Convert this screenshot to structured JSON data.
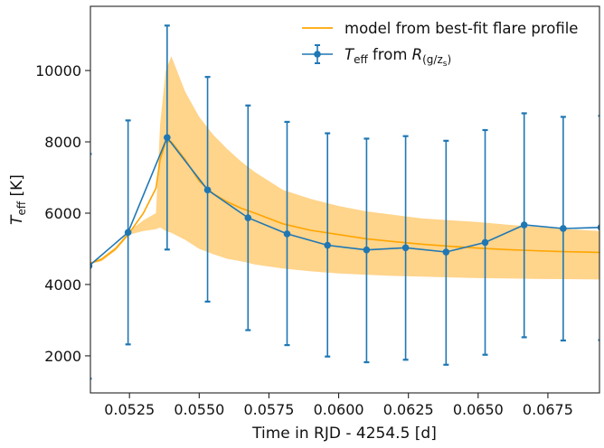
{
  "chart_data": {
    "type": "line",
    "xlabel": "Time in RJD - 4254.5  [d]",
    "ylabel": "T_eff [K]",
    "xlim": [
      0.0511,
      0.06935
    ],
    "ylim": [
      960,
      11800
    ],
    "x_ticks": [
      "0.0525",
      "0.0550",
      "0.0575",
      "0.0600",
      "0.0625",
      "0.0650",
      "0.0675"
    ],
    "x_tick_values": [
      0.0525,
      0.055,
      0.0575,
      0.06,
      0.0625,
      0.065,
      0.0675
    ],
    "y_ticks": [
      "2000",
      "4000",
      "6000",
      "8000",
      "10000"
    ],
    "y_tick_values": [
      2000,
      4000,
      6000,
      8000,
      10000
    ],
    "colors": {
      "model": "#ffa500",
      "band": "#ffcc77",
      "measured": "#1f77b4"
    },
    "legend": {
      "placement": "top-right",
      "model_label": "model from best-fit flare profile",
      "measured_label_prefix": "T_eff from R",
      "measured_label_subscript": "(g/z_s)"
    },
    "measured": {
      "x": [
        0.05105,
        0.05245,
        0.05385,
        0.0553,
        0.05675,
        0.05815,
        0.0596,
        0.061,
        0.0624,
        0.06385,
        0.06525,
        0.06665,
        0.06805,
        0.0694
      ],
      "y": [
        4520,
        5460,
        8120,
        6650,
        5870,
        5420,
        5100,
        4970,
        5030,
        4910,
        5180,
        5670,
        5570,
        5600
      ],
      "yerr_low": [
        1360,
        2320,
        4980,
        3520,
        2720,
        2300,
        1980,
        1820,
        1890,
        1750,
        2030,
        2520,
        2430,
        2440
      ],
      "yerr_high": [
        7660,
        8600,
        11260,
        9820,
        9020,
        8560,
        8240,
        8090,
        8160,
        8030,
        8330,
        8800,
        8700,
        8730
      ]
    },
    "model": {
      "x": [
        0.0511,
        0.0515,
        0.052,
        0.0525,
        0.053,
        0.05345,
        0.0536,
        0.0538,
        0.054,
        0.0545,
        0.055,
        0.0555,
        0.056,
        0.0565,
        0.057,
        0.058,
        0.059,
        0.06,
        0.061,
        0.062,
        0.063,
        0.064,
        0.065,
        0.066,
        0.067,
        0.068,
        0.06935
      ],
      "y": [
        4600,
        4700,
        5000,
        5450,
        6000,
        6700,
        7500,
        8000,
        8000,
        7500,
        6900,
        6550,
        6320,
        6140,
        6000,
        5700,
        5520,
        5400,
        5280,
        5200,
        5130,
        5070,
        5020,
        4980,
        4950,
        4920,
        4900
      ],
      "band_low": [
        4580,
        4650,
        4950,
        5400,
        5500,
        5550,
        5600,
        5500,
        5450,
        5250,
        5000,
        4850,
        4720,
        4650,
        4560,
        4450,
        4370,
        4310,
        4270,
        4240,
        4220,
        4200,
        4180,
        4170,
        4160,
        4150,
        4140
      ],
      "band_high": [
        4620,
        4750,
        5050,
        5500,
        5800,
        6000,
        8500,
        10000,
        10400,
        9400,
        8700,
        8200,
        7800,
        7450,
        7150,
        6650,
        6400,
        6200,
        6050,
        5950,
        5850,
        5800,
        5750,
        5680,
        5620,
        5560,
        5500
      ]
    }
  }
}
